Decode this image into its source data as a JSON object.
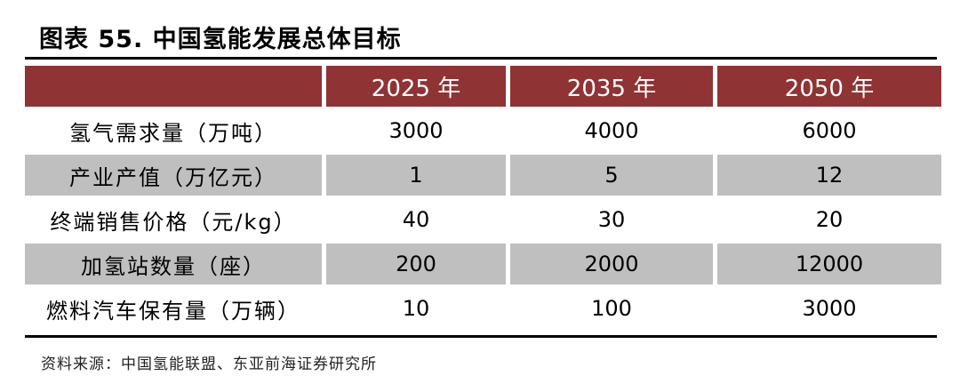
{
  "title": "图表 55. 中国氢能发展总体目标",
  "table": {
    "headers": [
      "",
      "2025 年",
      "2035 年",
      "2050 年"
    ],
    "rows": [
      {
        "label": "氢气需求量（万吨）",
        "values": [
          "3000",
          "4000",
          "6000"
        ]
      },
      {
        "label": "产业产值（万亿元）",
        "values": [
          "1",
          "5",
          "12"
        ]
      },
      {
        "label": "终端销售价格（元/kg）",
        "values": [
          "40",
          "30",
          "20"
        ]
      },
      {
        "label": "加氢站数量（座）",
        "values": [
          "200",
          "2000",
          "12000"
        ]
      },
      {
        "label": "燃料汽车保有量（万辆）",
        "values": [
          "10",
          "100",
          "3000"
        ]
      }
    ]
  },
  "source": "资料来源：中国氢能联盟、东亚前海证券研究所",
  "colors": {
    "header_bg": "#8f3335",
    "header_text": "#ffffff",
    "shaded_row_bg": "#bfbfbf"
  }
}
